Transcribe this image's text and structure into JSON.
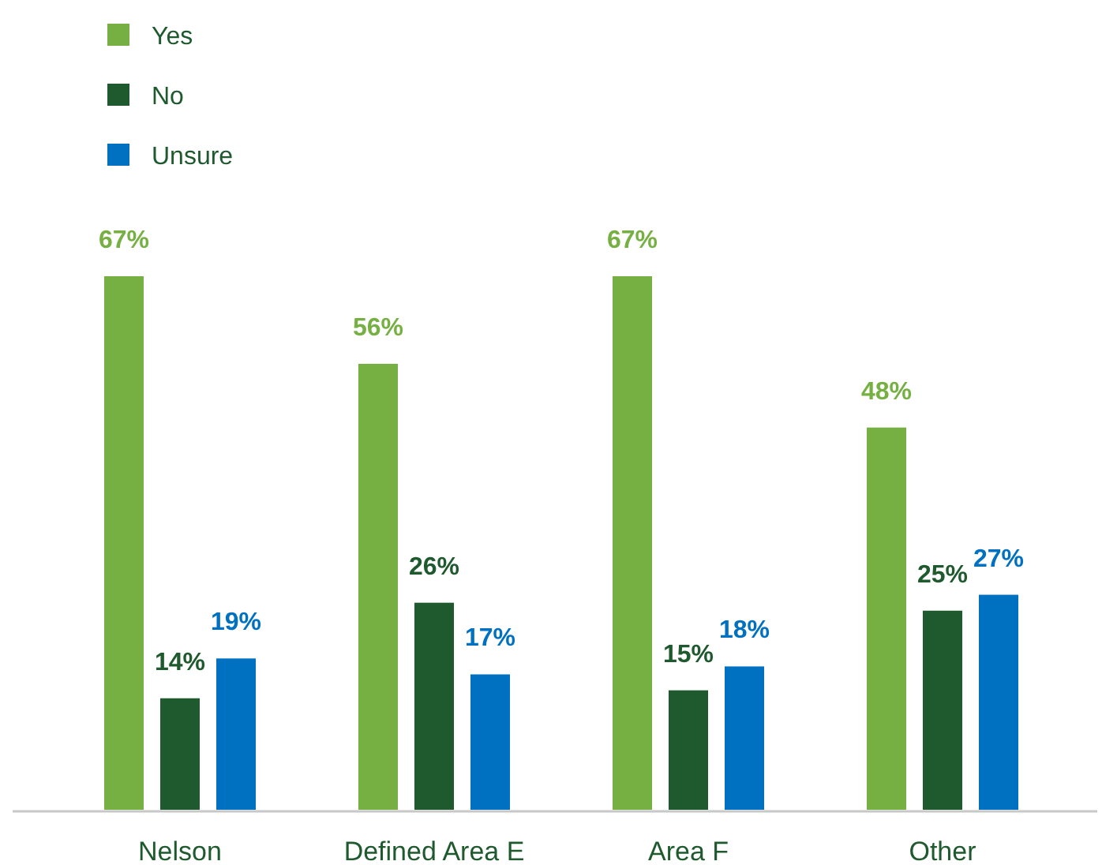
{
  "chart_data": {
    "type": "bar",
    "categories": [
      "Nelson",
      "Defined Area E",
      "Area F",
      "Other"
    ],
    "series": [
      {
        "name": "Yes",
        "color": "#76b043",
        "values": [
          67,
          56,
          67,
          48
        ],
        "value_labels": [
          "67%",
          "56%",
          "67%",
          "48%"
        ]
      },
      {
        "name": "No",
        "color": "#1f5a2e",
        "values": [
          14,
          26,
          15,
          25
        ],
        "value_labels": [
          "14%",
          "26%",
          "15%",
          "25%"
        ]
      },
      {
        "name": "Unsure",
        "color": "#0070c0",
        "values": [
          19,
          17,
          18,
          27
        ],
        "value_labels": [
          "19%",
          "17%",
          "18%",
          "27%"
        ]
      }
    ],
    "legend": "top left"
  }
}
